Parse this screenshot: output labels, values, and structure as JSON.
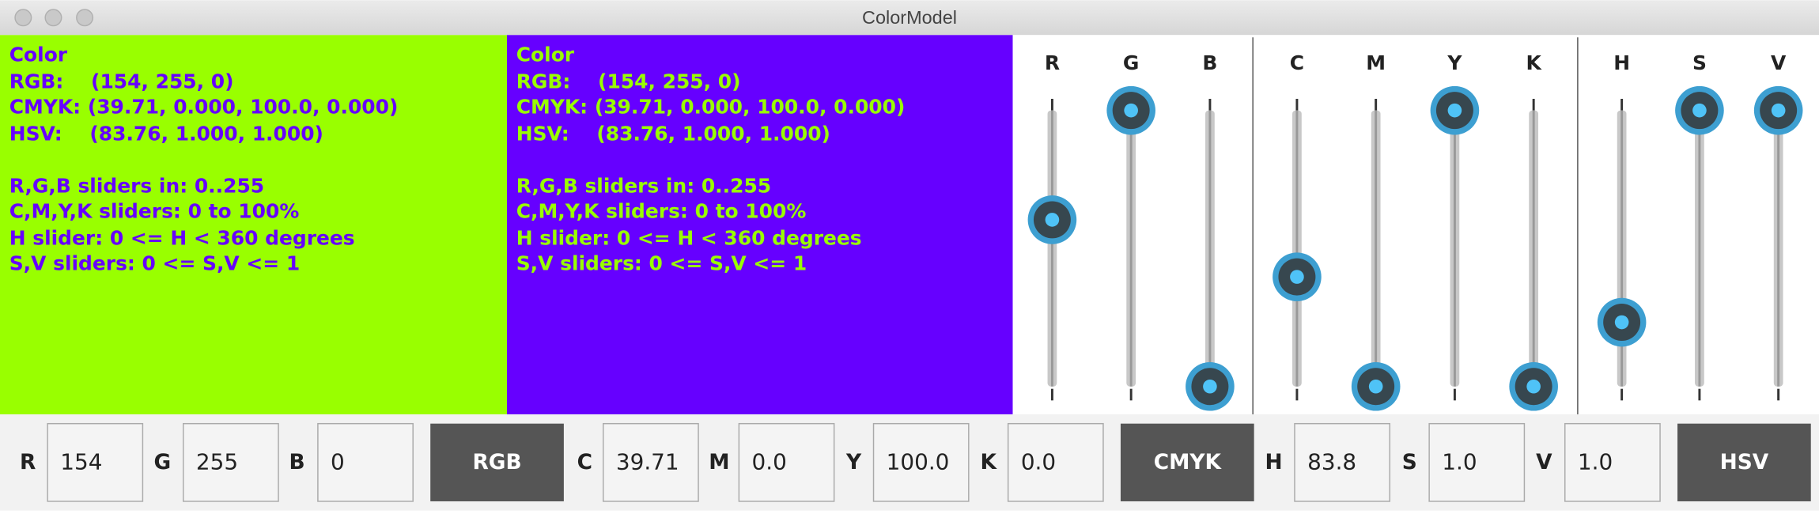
{
  "window": {
    "title": "ColorModel"
  },
  "panels": [
    {
      "lines": [
        "Color",
        "RGB:    (154, 255, 0)",
        "CMYK: (39.71, 0.000, 100.0, 0.000)",
        "HSV:    (83.76, 1.000, 1.000)",
        "R,G,B sliders in: 0..255",
        "C,M,Y,K sliders: 0 to 100%",
        "H slider: 0 <= H < 360 degrees",
        "S,V sliders: 0 <= S,V <= 1"
      ]
    },
    {
      "lines": [
        "Color",
        "RGB:    (154, 255, 0)",
        "CMYK: (39.71, 0.000, 100.0, 0.000)",
        "HSV:    (83.76, 1.000, 1.000)",
        "R,G,B sliders in: 0..255",
        "C,M,Y,K sliders: 0 to 100%",
        "H slider: 0 <= H < 360 degrees",
        "S,V sliders: 0 <= S,V <= 1"
      ]
    }
  ],
  "sliders": [
    {
      "labels": [
        "R",
        "G",
        "B"
      ],
      "values": [
        154,
        255,
        0
      ],
      "range": [
        0,
        255
      ]
    },
    {
      "labels": [
        "C",
        "M",
        "Y",
        "K"
      ],
      "values": [
        39.71,
        0,
        100,
        0
      ],
      "range": [
        0,
        100
      ]
    },
    {
      "labels": [
        "H"
      ],
      "values": [
        83.76
      ],
      "range": [
        0,
        360
      ]
    },
    {
      "labels": [
        "S",
        "V"
      ],
      "values": [
        1,
        1
      ],
      "range": [
        0,
        1
      ]
    }
  ],
  "fields": [
    {
      "label": "R",
      "value": "154"
    },
    {
      "label": "G",
      "value": "255"
    },
    {
      "label": "B",
      "value": "0"
    },
    {
      "label": "C",
      "value": "39.71"
    },
    {
      "label": "M",
      "value": "0.0"
    },
    {
      "label": "Y",
      "value": "100.0"
    },
    {
      "label": "K",
      "value": "0.0"
    },
    {
      "label": "H",
      "value": "83.8"
    },
    {
      "label": "S",
      "value": "1.0"
    },
    {
      "label": "V",
      "value": "1.0"
    }
  ],
  "buttons": [
    "RGB",
    "CMYK",
    "HSV"
  ]
}
